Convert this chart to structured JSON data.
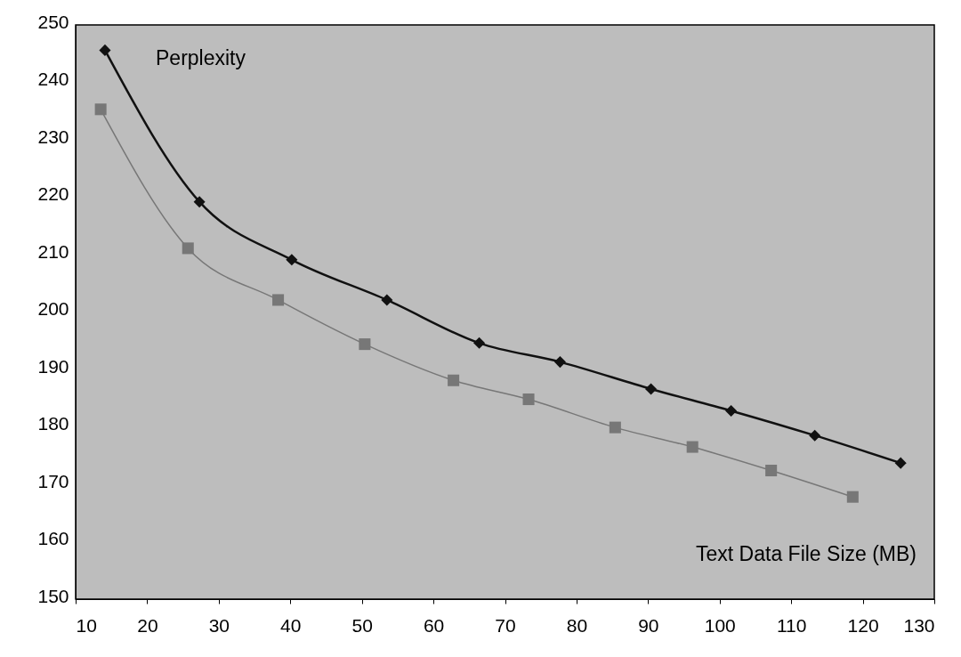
{
  "chart_data": {
    "type": "line",
    "xlabel": "Text Data File Size (MB)",
    "ylabel": "Perplexity",
    "xlim": [
      10,
      130
    ],
    "xticks": [
      10,
      20,
      30,
      40,
      50,
      60,
      70,
      80,
      90,
      100,
      110,
      120,
      130
    ],
    "ylim": [
      150,
      250
    ],
    "yticks": [
      150,
      160,
      170,
      180,
      190,
      200,
      210,
      220,
      230,
      240,
      250
    ],
    "grid": false,
    "line_style": "solid",
    "series": [
      {
        "color": "#111111",
        "marker": "diamond",
        "x": [
          14.1,
          27.3,
          40.2,
          53.5,
          66.4,
          77.7,
          90.4,
          101.6,
          113.3,
          125.3
        ],
        "values": [
          245.6,
          219.2,
          209.1,
          202.1,
          194.6,
          191.3,
          186.6,
          182.8,
          178.5,
          173.7
        ]
      },
      {
        "color": "#777777",
        "marker": "square",
        "x": [
          13.5,
          25.7,
          38.3,
          50.4,
          62.8,
          73.3,
          85.4,
          96.2,
          107.2,
          118.6
        ],
        "values": [
          235.3,
          211.1,
          202.1,
          194.4,
          188.1,
          184.8,
          179.9,
          176.5,
          172.4,
          167.8
        ]
      }
    ]
  }
}
